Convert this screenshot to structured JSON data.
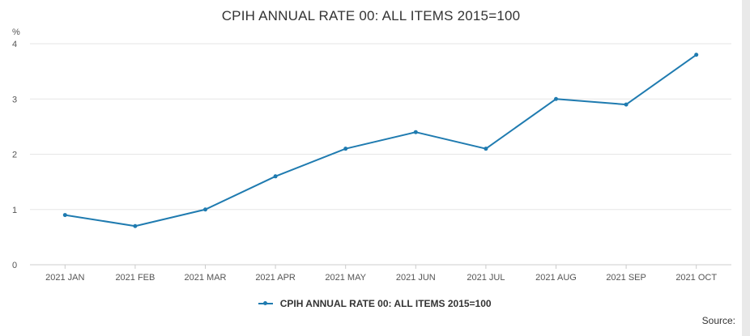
{
  "chart_data": {
    "type": "line",
    "title": "CPIH ANNUAL RATE 00: ALL ITEMS 2015=100",
    "ylabel": "%",
    "xlabel": "",
    "ylim": [
      0,
      4
    ],
    "yticks": [
      0,
      1,
      2,
      3,
      4
    ],
    "grid": true,
    "legend_position": "bottom",
    "categories": [
      "2021 JAN",
      "2021 FEB",
      "2021 MAR",
      "2021 APR",
      "2021 MAY",
      "2021 JUN",
      "2021 JUL",
      "2021 AUG",
      "2021 SEP",
      "2021 OCT"
    ],
    "series": [
      {
        "name": "CPIH ANNUAL RATE 00: ALL ITEMS 2015=100",
        "values": [
          0.9,
          0.7,
          1.0,
          1.6,
          2.1,
          2.4,
          2.1,
          3.0,
          2.9,
          3.8
        ],
        "color": "#1f7bb0"
      }
    ]
  },
  "footer": {
    "source_label": "Source:"
  }
}
